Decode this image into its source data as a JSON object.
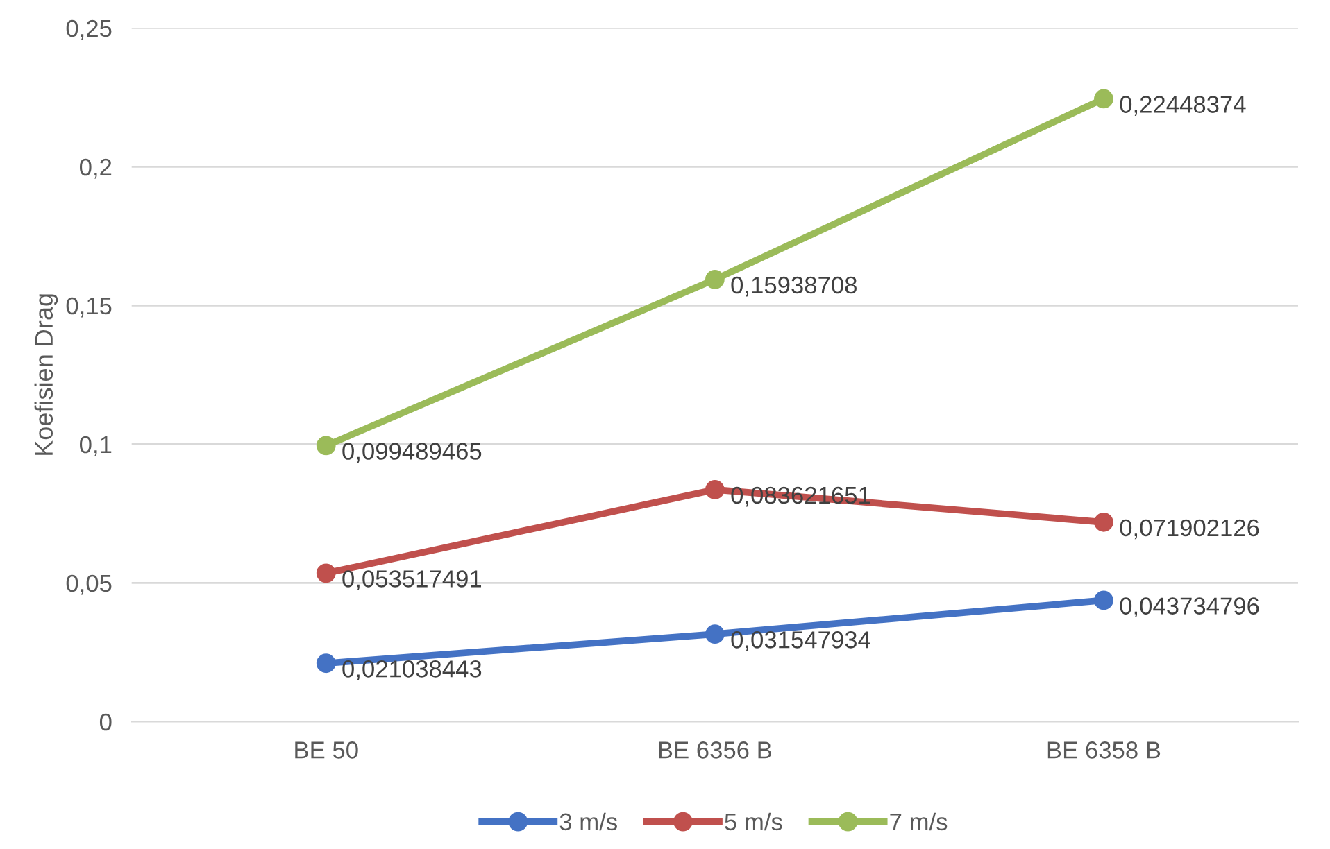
{
  "chart_data": {
    "type": "line",
    "ylabel": "Koefisien Drag",
    "categories": [
      "BE 50",
      "BE 6356 B",
      "BE 6358 B"
    ],
    "series": [
      {
        "name": "3 m/s",
        "color": "#4472c4",
        "values": [
          0.021038443,
          0.031547934,
          0.043734796
        ],
        "value_labels": [
          "0,021038443",
          "0,031547934",
          "0,043734796"
        ]
      },
      {
        "name": "5 m/s",
        "color": "#c0504d",
        "values": [
          0.053517491,
          0.083621651,
          0.071902126
        ],
        "value_labels": [
          "0,053517491",
          "0,083621651",
          "0,071902126"
        ]
      },
      {
        "name": "7 m/s",
        "color": "#9bbb59",
        "values": [
          0.099489465,
          0.15938708,
          0.22448374
        ],
        "value_labels": [
          "0,099489465",
          "0,15938708",
          "0,22448374"
        ]
      }
    ],
    "ylim": [
      0,
      0.25
    ],
    "yticks": [
      {
        "value": 0,
        "label": "0"
      },
      {
        "value": 0.05,
        "label": "0,05"
      },
      {
        "value": 0.1,
        "label": "0,1"
      },
      {
        "value": 0.15,
        "label": "0,15"
      },
      {
        "value": 0.2,
        "label": "0,2"
      },
      {
        "value": 0.25,
        "label": "0,25"
      }
    ],
    "grid": "y",
    "legend": "bottom",
    "marker": "circle",
    "line_style": "solid"
  }
}
